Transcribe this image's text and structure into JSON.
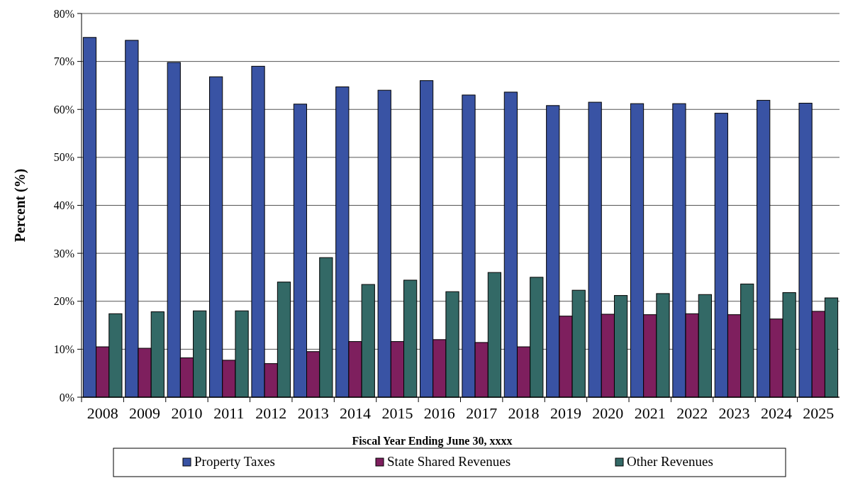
{
  "chart_data": {
    "type": "bar",
    "xlabel": "Fiscal Year Ending June 30, xxxx",
    "ylabel": "Percent (%)",
    "categories": [
      "2008",
      "2009",
      "2010",
      "2011",
      "2012",
      "2013",
      "2014",
      "2015",
      "2016",
      "2017",
      "2018",
      "2019",
      "2020",
      "2021",
      "2022",
      "2023",
      "2024",
      "2025"
    ],
    "series": [
      {
        "name": "Property Taxes",
        "color": "#3953a4",
        "values": [
          75,
          74.4,
          69.8,
          66.8,
          69,
          61.1,
          64.7,
          64,
          66,
          63,
          63.6,
          60.8,
          61.5,
          61.2,
          61.2,
          59.2,
          61.9,
          61.3
        ]
      },
      {
        "name": "State Shared Revenues",
        "color": "#7e1f5e",
        "values": [
          10.5,
          10.2,
          8.2,
          7.7,
          7,
          9.5,
          11.6,
          11.6,
          12,
          11.4,
          10.5,
          16.9,
          17.3,
          17.2,
          17.4,
          17.2,
          16.3,
          17.9
        ]
      },
      {
        "name": "Other Revenues",
        "color": "#336966",
        "values": [
          17.4,
          17.8,
          18,
          18,
          24,
          29.1,
          23.5,
          24.4,
          22,
          26,
          25,
          22.3,
          21.2,
          21.6,
          21.4,
          23.6,
          21.8,
          20.7
        ]
      }
    ],
    "ylim": [
      0,
      80
    ],
    "yticks": [
      {
        "value": 0,
        "label": "0%"
      },
      {
        "value": 10,
        "label": "10%"
      },
      {
        "value": 20,
        "label": "20%"
      },
      {
        "value": 30,
        "label": "30%"
      },
      {
        "value": 40,
        "label": "40%"
      },
      {
        "value": 50,
        "label": "50%"
      },
      {
        "value": 60,
        "label": "60%"
      },
      {
        "value": 70,
        "label": "70%"
      },
      {
        "value": 80,
        "label": "80%"
      }
    ],
    "grid": "y",
    "legend": "bottom"
  }
}
